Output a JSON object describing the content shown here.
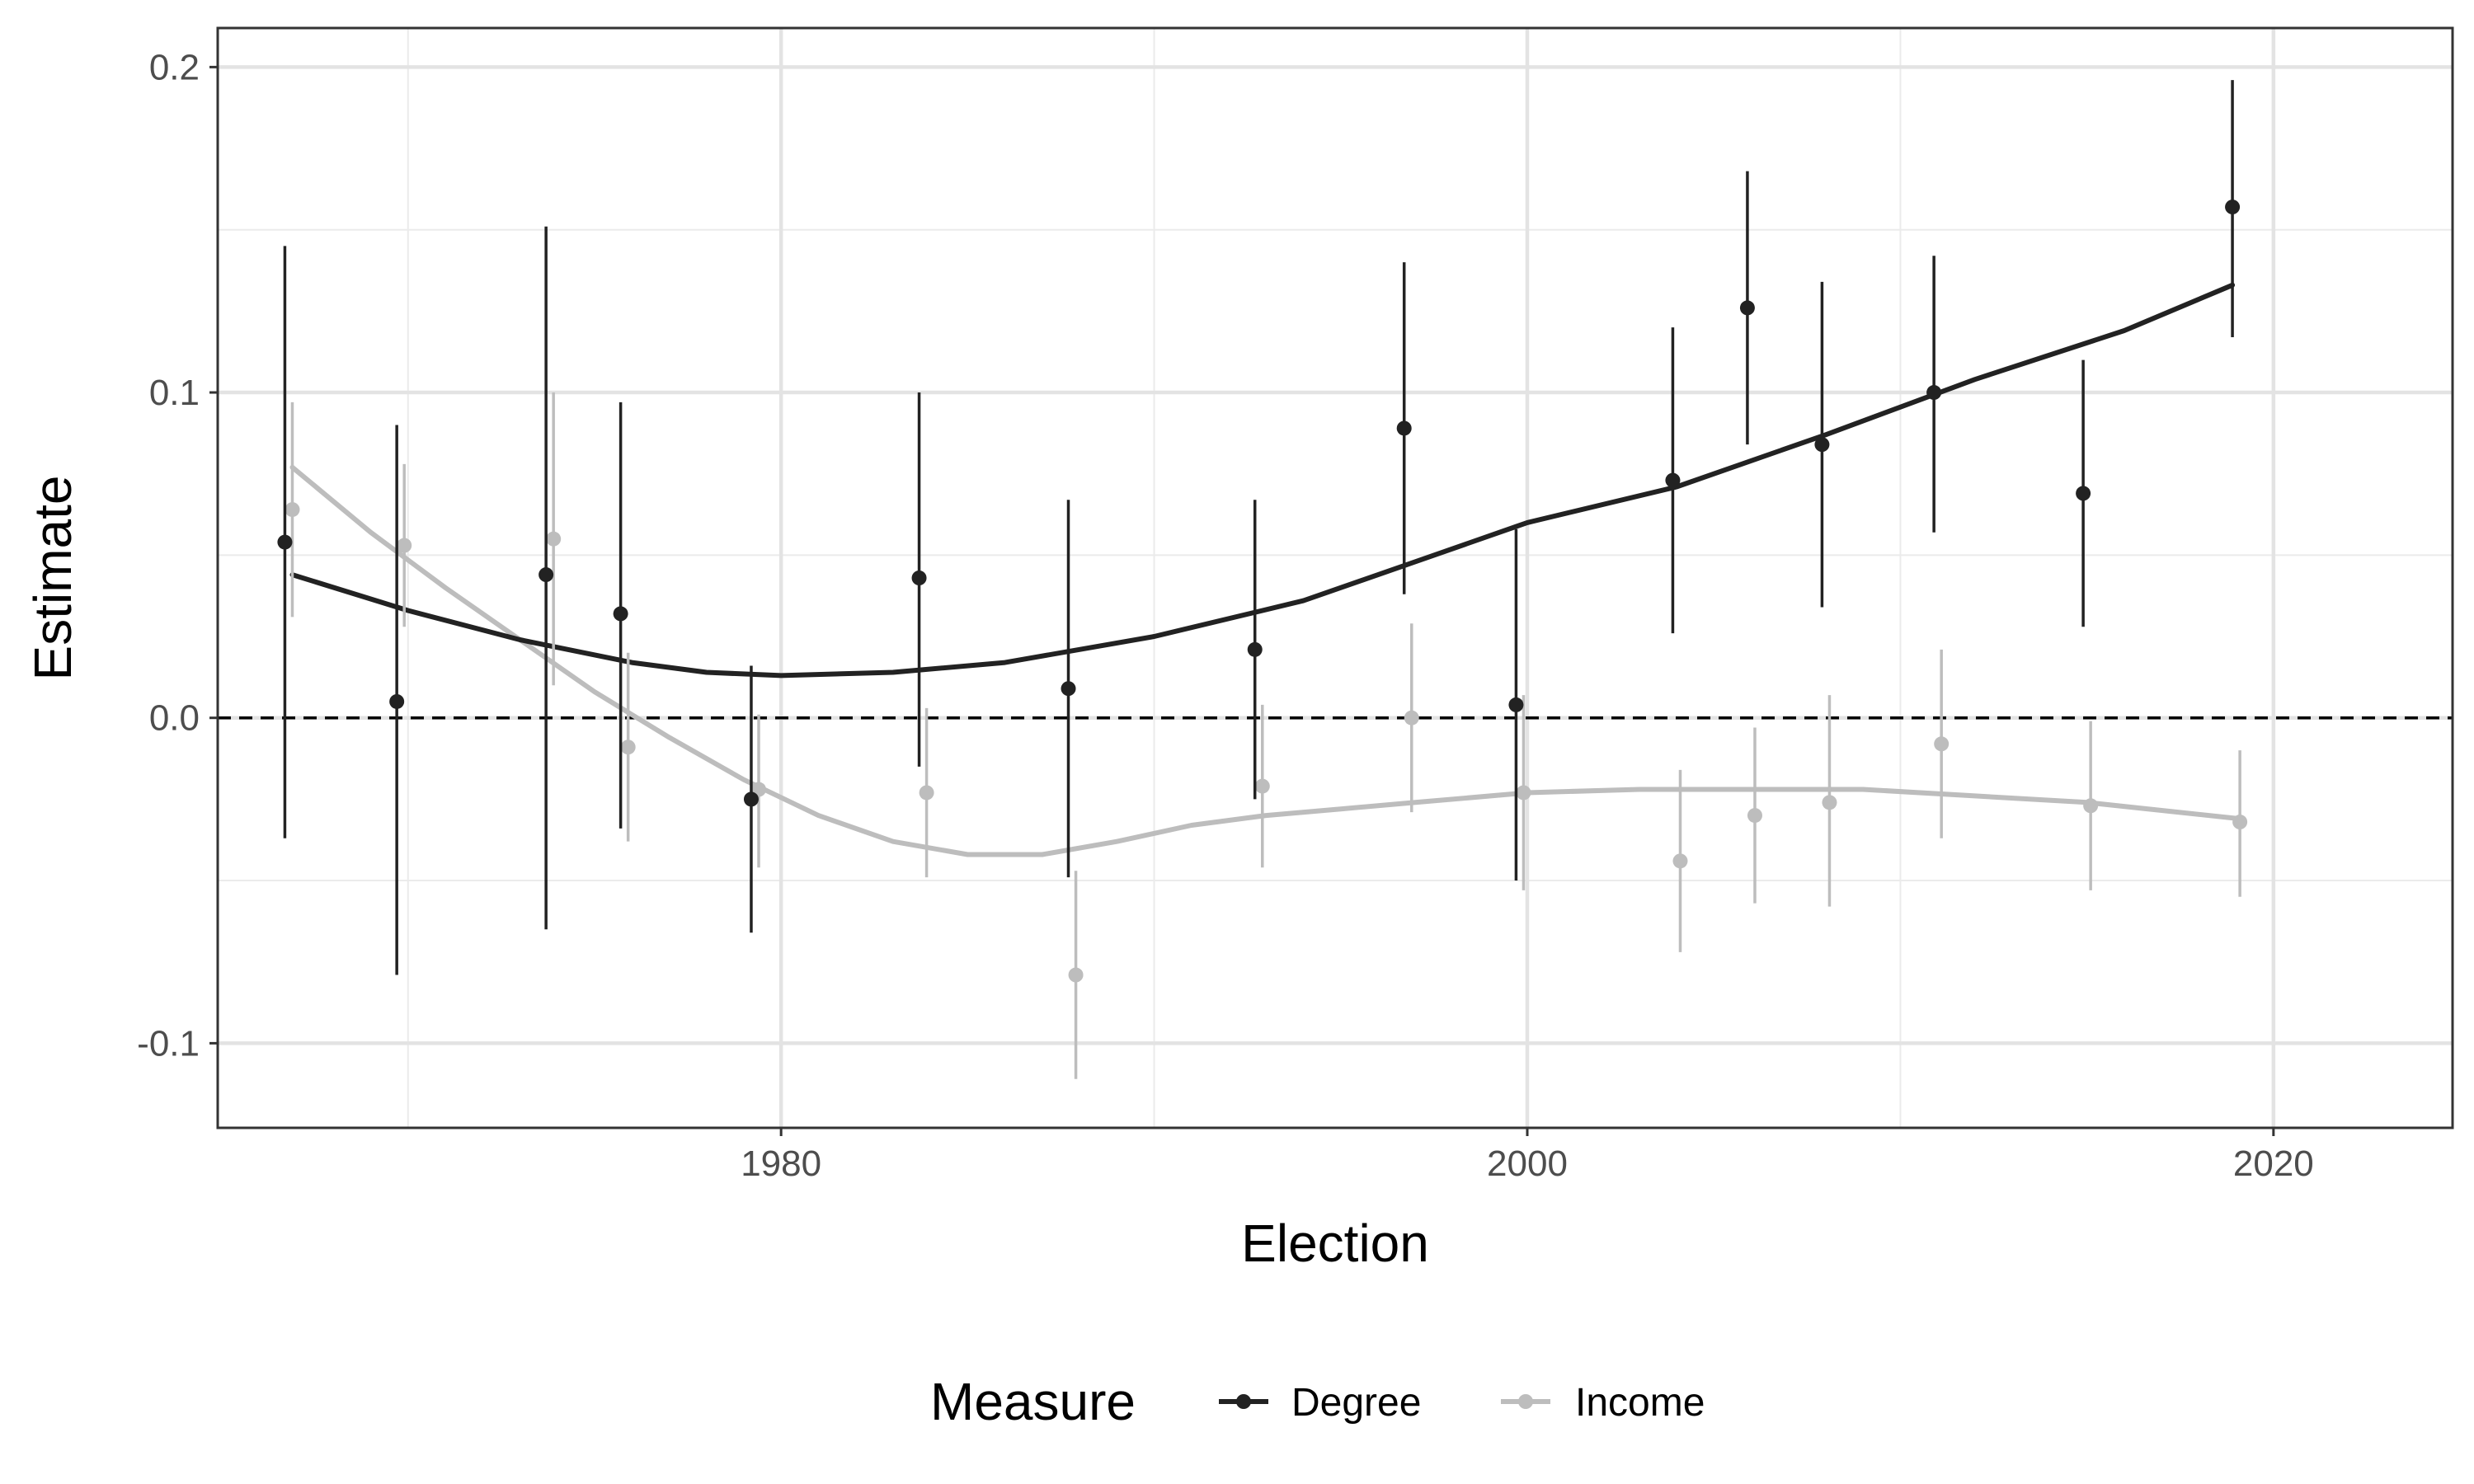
{
  "chart_data": {
    "type": "scatter",
    "title": "",
    "xlabel": "Election",
    "ylabel": "Estimate",
    "xlim": [
      1964.9,
      2024.8
    ],
    "ylim": [
      -0.126,
      0.212
    ],
    "x_ticks": [
      1980,
      2000,
      2020
    ],
    "x_tick_labels": [
      "1980",
      "2000",
      "2020"
    ],
    "y_ticks": [
      -0.1,
      0.0,
      0.1,
      0.2
    ],
    "y_tick_labels": [
      "-0.1",
      "0.0",
      "0.1",
      "0.2"
    ],
    "reference_line": {
      "y": 0,
      "style": "dashed"
    },
    "grid": true,
    "legend": {
      "title": "Measure",
      "position": "bottom"
    },
    "series": [
      {
        "name": "Degree",
        "color": "#222222",
        "points": [
          {
            "x": 1966.7,
            "y": 0.054,
            "low": -0.037,
            "high": 0.145
          },
          {
            "x": 1969.7,
            "y": 0.005,
            "low": -0.079,
            "high": 0.09
          },
          {
            "x": 1973.7,
            "y": 0.044,
            "low": -0.065,
            "high": 0.151
          },
          {
            "x": 1975.7,
            "y": 0.032,
            "low": -0.034,
            "high": 0.097
          },
          {
            "x": 1979.2,
            "y": -0.025,
            "low": -0.066,
            "high": 0.016
          },
          {
            "x": 1983.7,
            "y": 0.043,
            "low": -0.015,
            "high": 0.1
          },
          {
            "x": 1987.7,
            "y": 0.009,
            "low": -0.049,
            "high": 0.067
          },
          {
            "x": 1992.7,
            "y": 0.021,
            "low": -0.025,
            "high": 0.067
          },
          {
            "x": 1996.7,
            "y": 0.089,
            "low": 0.038,
            "high": 0.14
          },
          {
            "x": 1999.7,
            "y": 0.004,
            "low": -0.05,
            "high": 0.058
          },
          {
            "x": 2003.9,
            "y": 0.073,
            "low": 0.026,
            "high": 0.12
          },
          {
            "x": 2005.9,
            "y": 0.126,
            "low": 0.084,
            "high": 0.168
          },
          {
            "x": 2007.9,
            "y": 0.084,
            "low": 0.034,
            "high": 0.134
          },
          {
            "x": 2010.9,
            "y": 0.1,
            "low": 0.057,
            "high": 0.142
          },
          {
            "x": 2014.9,
            "y": 0.069,
            "low": 0.028,
            "high": 0.11
          },
          {
            "x": 2018.9,
            "y": 0.157,
            "low": 0.117,
            "high": 0.196
          }
        ],
        "smooth": [
          [
            1966.9,
            0.044
          ],
          [
            1970.0,
            0.033
          ],
          [
            1973.0,
            0.024
          ],
          [
            1976.0,
            0.017
          ],
          [
            1978.0,
            0.014
          ],
          [
            1980.0,
            0.013
          ],
          [
            1983.0,
            0.014
          ],
          [
            1986.0,
            0.017
          ],
          [
            1990.0,
            0.025
          ],
          [
            1994.0,
            0.036
          ],
          [
            1997.0,
            0.048
          ],
          [
            2000.0,
            0.06
          ],
          [
            2004.0,
            0.071
          ],
          [
            2008.0,
            0.087
          ],
          [
            2012.0,
            0.104
          ],
          [
            2016.0,
            0.119
          ],
          [
            2018.9,
            0.133
          ]
        ]
      },
      {
        "name": "Income",
        "color": "#bdbdbd",
        "points": [
          {
            "x": 1966.9,
            "y": 0.064,
            "low": 0.031,
            "high": 0.097
          },
          {
            "x": 1969.9,
            "y": 0.053,
            "low": 0.028,
            "high": 0.078
          },
          {
            "x": 1973.9,
            "y": 0.055,
            "low": 0.01,
            "high": 0.1
          },
          {
            "x": 1975.9,
            "y": -0.009,
            "low": -0.038,
            "high": 0.02
          },
          {
            "x": 1979.4,
            "y": -0.022,
            "low": -0.046,
            "high": 0.001
          },
          {
            "x": 1983.9,
            "y": -0.023,
            "low": -0.049,
            "high": 0.003
          },
          {
            "x": 1987.9,
            "y": -0.079,
            "low": -0.111,
            "high": -0.047
          },
          {
            "x": 1992.9,
            "y": -0.021,
            "low": -0.046,
            "high": 0.004
          },
          {
            "x": 1996.9,
            "y": 0.0,
            "low": -0.029,
            "high": 0.029
          },
          {
            "x": 1999.9,
            "y": -0.023,
            "low": -0.053,
            "high": 0.007
          },
          {
            "x": 2004.1,
            "y": -0.044,
            "low": -0.072,
            "high": -0.016
          },
          {
            "x": 2006.1,
            "y": -0.03,
            "low": -0.057,
            "high": -0.003
          },
          {
            "x": 2008.1,
            "y": -0.026,
            "low": -0.058,
            "high": 0.007
          },
          {
            "x": 2011.1,
            "y": -0.008,
            "low": -0.037,
            "high": 0.021
          },
          {
            "x": 2015.1,
            "y": -0.027,
            "low": -0.053,
            "high": -0.001
          },
          {
            "x": 2019.1,
            "y": -0.032,
            "low": -0.055,
            "high": -0.01
          }
        ],
        "smooth": [
          [
            1966.9,
            0.077
          ],
          [
            1969.0,
            0.057
          ],
          [
            1971.0,
            0.04
          ],
          [
            1973.0,
            0.024
          ],
          [
            1975.0,
            0.008
          ],
          [
            1977.0,
            -0.006
          ],
          [
            1979.0,
            -0.019
          ],
          [
            1981.0,
            -0.03
          ],
          [
            1983.0,
            -0.038
          ],
          [
            1985.0,
            -0.042
          ],
          [
            1987.0,
            -0.042
          ],
          [
            1989.0,
            -0.038
          ],
          [
            1991.0,
            -0.033
          ],
          [
            1993.0,
            -0.03
          ],
          [
            1995.0,
            -0.028
          ],
          [
            1997.0,
            -0.026
          ],
          [
            2000.0,
            -0.023
          ],
          [
            2003.0,
            -0.022
          ],
          [
            2006.0,
            -0.022
          ],
          [
            2009.0,
            -0.022
          ],
          [
            2012.0,
            -0.024
          ],
          [
            2015.0,
            -0.026
          ],
          [
            2019.1,
            -0.031
          ]
        ]
      }
    ]
  }
}
